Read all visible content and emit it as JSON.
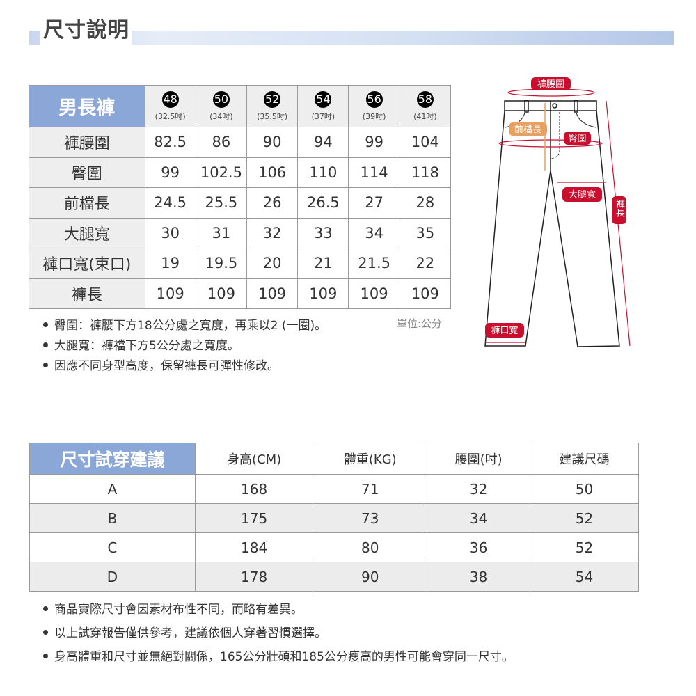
{
  "header": {
    "title": "尺寸說明"
  },
  "size_table": {
    "title": "男長褲",
    "sizes": [
      {
        "size": "48",
        "inch": "(32.5吋)"
      },
      {
        "size": "50",
        "inch": "(34吋)"
      },
      {
        "size": "52",
        "inch": "(35.5吋)"
      },
      {
        "size": "54",
        "inch": "(37吋)"
      },
      {
        "size": "56",
        "inch": "(39吋)"
      },
      {
        "size": "58",
        "inch": "(41吋)"
      }
    ],
    "rows": [
      {
        "label": "褲腰圍",
        "values": [
          "82.5",
          "86",
          "90",
          "94",
          "99",
          "104"
        ]
      },
      {
        "label": "臀圍",
        "values": [
          "99",
          "102.5",
          "106",
          "110",
          "114",
          "118"
        ]
      },
      {
        "label": "前檔長",
        "values": [
          "24.5",
          "25.5",
          "26",
          "26.5",
          "27",
          "28"
        ]
      },
      {
        "label": "大腿寬",
        "values": [
          "30",
          "31",
          "32",
          "33",
          "34",
          "35"
        ]
      },
      {
        "label": "褲口寬(束口)",
        "values": [
          "19",
          "19.5",
          "20",
          "21",
          "21.5",
          "22"
        ]
      },
      {
        "label": "褲長",
        "values": [
          "109",
          "109",
          "109",
          "109",
          "109",
          "109"
        ]
      }
    ],
    "unit": "單位:公分",
    "notes": [
      "臀圍：褲腰下方18公分處之寬度，再乘以2 (一圈)。",
      "大腿寬：褲襠下方5公分處之寬度。",
      "因應不同身型高度，保留褲長可彈性修改。"
    ]
  },
  "diagram": {
    "waist": "褲腰圍",
    "rise": "前檔長",
    "hip": "臀圍",
    "thigh": "大腿寬",
    "length": "褲長",
    "hem": "褲口寬",
    "accent": "#c8102e",
    "rise_color": "#e8a060"
  },
  "fit_table": {
    "title": "尺寸試穿建議",
    "columns": [
      "身高(CM)",
      "體重(KG)",
      "腰圍(吋)",
      "建議尺碼"
    ],
    "rows": [
      {
        "label": "A",
        "values": [
          "168",
          "71",
          "32",
          "50"
        ]
      },
      {
        "label": "B",
        "values": [
          "175",
          "73",
          "34",
          "52"
        ]
      },
      {
        "label": "C",
        "values": [
          "184",
          "80",
          "36",
          "52"
        ]
      },
      {
        "label": "D",
        "values": [
          "178",
          "90",
          "38",
          "54"
        ]
      }
    ],
    "notes": [
      "商品實際尺寸會因素材布性不同，而略有差異。",
      "以上試穿報告僅供參考，建議依個人穿著習慣選擇。",
      "身高體重和尺寸並無絕對關係，165公分壯碩和185公分瘦高的男性可能會穿同一尺寸。"
    ]
  }
}
